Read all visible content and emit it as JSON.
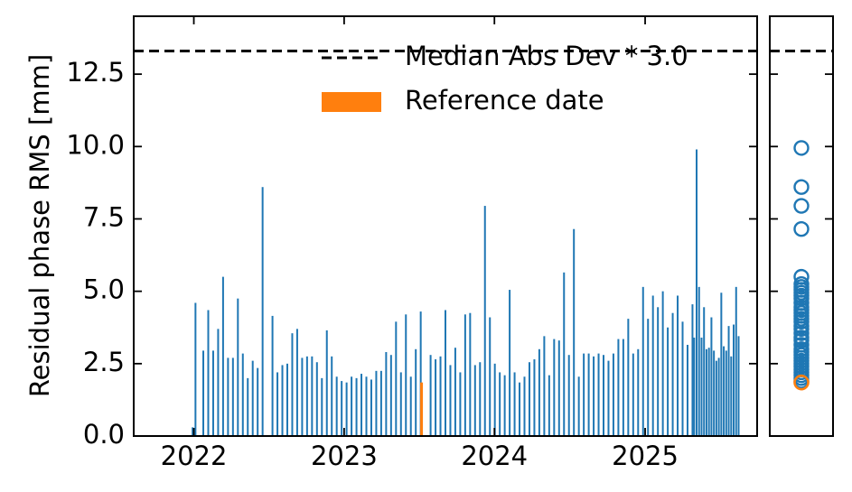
{
  "chart_data": [
    {
      "type": "bar",
      "ylabel": "Residual phase RMS [mm]",
      "ylim": [
        0,
        14.5
      ],
      "xlim": [
        "2021-08-08",
        "2025-09-30"
      ],
      "yticks": [
        {
          "value": 0,
          "label": "0.0"
        },
        {
          "value": 2.5,
          "label": "2.5"
        },
        {
          "value": 5,
          "label": "5.0"
        },
        {
          "value": 7.5,
          "label": "7.5"
        },
        {
          "value": 10,
          "label": "10.0"
        },
        {
          "value": 12.5,
          "label": "12.5"
        }
      ],
      "xticks": [
        {
          "value": "2022-01-01",
          "label": "2022"
        },
        {
          "value": "2023-01-01",
          "label": "2023"
        },
        {
          "value": "2024-01-01",
          "label": "2024"
        },
        {
          "value": "2025-01-01",
          "label": "2025"
        }
      ],
      "threshold": {
        "value": 13.3,
        "label": "Median Abs Dev * 3.0",
        "style": "dashed",
        "color": "#000000"
      },
      "legend": {
        "placement": "top-right",
        "entries": [
          {
            "label": "Median Abs Dev * 3.0",
            "kind": "dashed-line",
            "color": "#000000"
          },
          {
            "label": "Reference date",
            "kind": "patch",
            "color": "#ff7f0e"
          }
        ]
      },
      "reference_date": {
        "date": "2023-07-08",
        "value": 1.85,
        "color": "#ff7f0e"
      },
      "bar_color": "#1f77b4",
      "series": [
        {
          "points": [
            [
              "2021-12-29",
              0.3
            ],
            [
              "2022-01-05",
              4.6
            ],
            [
              "2022-01-24",
              2.95
            ],
            [
              "2022-02-05",
              4.35
            ],
            [
              "2022-02-17",
              2.95
            ],
            [
              "2022-03-01",
              3.7
            ],
            [
              "2022-03-13",
              5.5
            ],
            [
              "2022-03-25",
              2.7
            ],
            [
              "2022-04-06",
              2.7
            ],
            [
              "2022-04-18",
              4.75
            ],
            [
              "2022-04-30",
              2.85
            ],
            [
              "2022-05-12",
              2.0
            ],
            [
              "2022-05-24",
              2.6
            ],
            [
              "2022-06-05",
              2.35
            ],
            [
              "2022-06-17",
              8.6
            ],
            [
              "2022-07-11",
              4.15
            ],
            [
              "2022-07-23",
              2.2
            ],
            [
              "2022-08-04",
              2.45
            ],
            [
              "2022-08-16",
              2.5
            ],
            [
              "2022-08-28",
              3.55
            ],
            [
              "2022-09-09",
              3.7
            ],
            [
              "2022-09-21",
              2.7
            ],
            [
              "2022-10-03",
              2.75
            ],
            [
              "2022-10-15",
              2.75
            ],
            [
              "2022-10-27",
              2.55
            ],
            [
              "2022-11-08",
              2.0
            ],
            [
              "2022-11-20",
              3.65
            ],
            [
              "2022-12-02",
              2.75
            ],
            [
              "2022-12-14",
              2.05
            ],
            [
              "2022-12-26",
              1.9
            ],
            [
              "2023-01-07",
              1.85
            ],
            [
              "2023-01-19",
              2.05
            ],
            [
              "2023-01-31",
              2.0
            ],
            [
              "2023-02-12",
              2.15
            ],
            [
              "2023-02-24",
              2.05
            ],
            [
              "2023-03-08",
              1.95
            ],
            [
              "2023-03-20",
              2.25
            ],
            [
              "2023-04-01",
              2.25
            ],
            [
              "2023-04-13",
              2.9
            ],
            [
              "2023-04-25",
              2.8
            ],
            [
              "2023-05-07",
              3.95
            ],
            [
              "2023-05-19",
              2.2
            ],
            [
              "2023-05-31",
              4.2
            ],
            [
              "2023-06-12",
              2.05
            ],
            [
              "2023-06-24",
              3.0
            ],
            [
              "2023-07-06",
              4.3
            ],
            [
              "2023-07-30",
              2.8
            ],
            [
              "2023-08-11",
              2.65
            ],
            [
              "2023-08-23",
              2.75
            ],
            [
              "2023-09-04",
              4.35
            ],
            [
              "2023-09-16",
              2.45
            ],
            [
              "2023-09-28",
              3.05
            ],
            [
              "2023-10-10",
              2.2
            ],
            [
              "2023-10-22",
              4.2
            ],
            [
              "2023-11-03",
              4.25
            ],
            [
              "2023-11-15",
              2.45
            ],
            [
              "2023-11-27",
              2.55
            ],
            [
              "2023-12-09",
              7.95
            ],
            [
              "2023-12-21",
              4.1
            ],
            [
              "2024-01-02",
              2.5
            ],
            [
              "2024-01-14",
              2.2
            ],
            [
              "2024-01-26",
              2.1
            ],
            [
              "2024-02-07",
              5.05
            ],
            [
              "2024-02-19",
              2.2
            ],
            [
              "2024-03-02",
              1.85
            ],
            [
              "2024-03-14",
              2.05
            ],
            [
              "2024-03-26",
              2.55
            ],
            [
              "2024-04-07",
              2.65
            ],
            [
              "2024-04-19",
              3.0
            ],
            [
              "2024-05-01",
              3.45
            ],
            [
              "2024-05-13",
              2.1
            ],
            [
              "2024-05-25",
              3.35
            ],
            [
              "2024-06-06",
              3.3
            ],
            [
              "2024-06-18",
              5.65
            ],
            [
              "2024-06-30",
              2.8
            ],
            [
              "2024-07-12",
              7.15
            ],
            [
              "2024-07-24",
              2.05
            ],
            [
              "2024-08-05",
              2.85
            ],
            [
              "2024-08-17",
              2.85
            ],
            [
              "2024-08-29",
              2.75
            ],
            [
              "2024-09-10",
              2.85
            ],
            [
              "2024-09-22",
              2.8
            ],
            [
              "2024-10-04",
              2.6
            ],
            [
              "2024-10-16",
              2.85
            ],
            [
              "2024-10-28",
              3.35
            ],
            [
              "2024-11-09",
              3.35
            ],
            [
              "2024-11-21",
              4.05
            ],
            [
              "2024-12-03",
              2.85
            ],
            [
              "2024-12-15",
              3.0
            ],
            [
              "2024-12-27",
              5.15
            ],
            [
              "2025-01-08",
              4.05
            ],
            [
              "2025-01-20",
              4.85
            ],
            [
              "2025-02-01",
              4.45
            ],
            [
              "2025-02-13",
              5.0
            ],
            [
              "2025-02-25",
              3.75
            ],
            [
              "2025-03-09",
              4.25
            ],
            [
              "2025-03-21",
              4.85
            ],
            [
              "2025-04-02",
              3.95
            ],
            [
              "2025-04-14",
              3.15
            ],
            [
              "2025-04-26",
              4.55
            ],
            [
              "2025-04-30",
              3.4
            ],
            [
              "2025-05-06",
              9.9
            ],
            [
              "2025-05-12",
              5.15
            ],
            [
              "2025-05-18",
              3.4
            ],
            [
              "2025-05-24",
              4.45
            ],
            [
              "2025-05-30",
              3.0
            ],
            [
              "2025-06-05",
              3.05
            ],
            [
              "2025-06-11",
              4.1
            ],
            [
              "2025-06-17",
              2.95
            ],
            [
              "2025-06-23",
              2.6
            ],
            [
              "2025-06-29",
              2.7
            ],
            [
              "2025-07-05",
              4.95
            ],
            [
              "2025-07-11",
              3.1
            ],
            [
              "2025-07-17",
              2.95
            ],
            [
              "2025-07-23",
              3.8
            ],
            [
              "2025-07-29",
              2.75
            ],
            [
              "2025-08-04",
              3.85
            ],
            [
              "2025-08-10",
              5.15
            ],
            [
              "2025-08-16",
              3.45
            ]
          ]
        }
      ]
    },
    {
      "type": "scatter",
      "ylim": [
        0,
        14.5
      ],
      "threshold": {
        "value": 13.3,
        "style": "dashed",
        "color": "#000000"
      },
      "marker_color": "#1f77b4",
      "highlight": {
        "value": 1.85,
        "color": "#ff7f0e"
      },
      "values": [
        9.95,
        8.6,
        7.95,
        7.15,
        5.5,
        5.25,
        5.15,
        5.05,
        4.95,
        4.85,
        4.75,
        4.6,
        4.45,
        4.35,
        4.25,
        4.15,
        4.05,
        3.95,
        3.8,
        3.7,
        3.55,
        3.4,
        3.3,
        3.15,
        3.0,
        2.9,
        2.8,
        2.7,
        2.6,
        2.5,
        2.4,
        2.3,
        2.2,
        2.1,
        2.0,
        1.9
      ]
    }
  ]
}
